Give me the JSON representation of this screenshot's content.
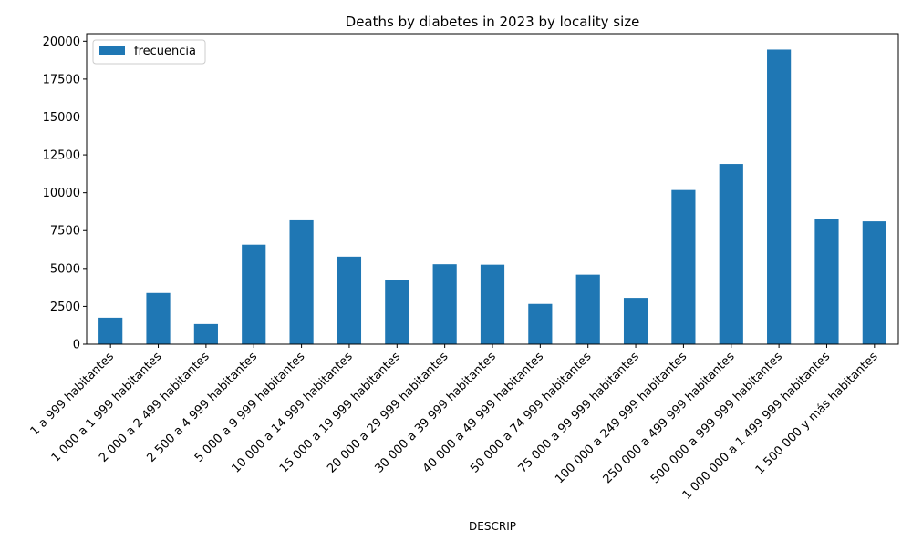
{
  "chart_data": {
    "type": "bar",
    "title": "Deaths by diabetes in 2023 by locality size",
    "xlabel": "DESCRIP",
    "ylabel": "",
    "ylim": [
      0,
      20500
    ],
    "yticks": [
      0,
      2500,
      5000,
      7500,
      10000,
      12500,
      15000,
      17500,
      20000
    ],
    "grid": false,
    "legend_position": "top-left",
    "bar_color": "#1f77b4",
    "categories": [
      "1 a 999 habitantes",
      "1 000 a 1 999 habitantes",
      "2 000 a 2 499  habitantes",
      "2 500 a 4 999 habitantes",
      "5 000 a 9 999 habitantes",
      "10 000 a 14 999 habitantes",
      "15 000 a 19 999 habitantes",
      "20 000 a 29 999 habitantes",
      "30 000 a 39 999 habitantes",
      "40 000 a 49 999 habitantes",
      "50 000 a 74 999 habitantes",
      "75 000 a 99 999 habitantes",
      "100 000 a 249 999 habitantes",
      "250 000 a 499 999 habitantes",
      "500 000 a 999 999 habitantes",
      "1 000 000 a 1 499 999 habitantes",
      "1 500 000 y más habitantes"
    ],
    "series": [
      {
        "name": "frecuencia",
        "values": [
          1750,
          3380,
          1330,
          6570,
          8180,
          5780,
          4230,
          5280,
          5250,
          2660,
          4590,
          3060,
          10180,
          11900,
          19450,
          8270,
          8110
        ]
      }
    ]
  }
}
